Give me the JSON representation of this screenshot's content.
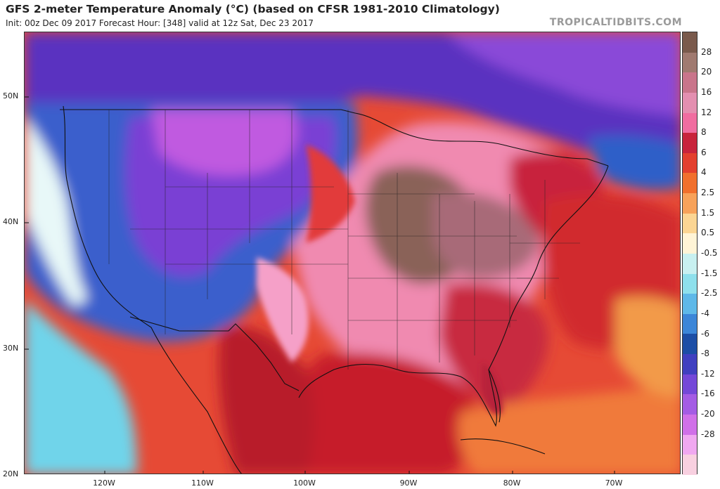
{
  "header": {
    "title": "GFS 2-meter Temperature Anomaly (°C) (based on CFSR 1981-2010 Climatology)",
    "subtitle": "Init: 00z Dec 09 2017   Forecast Hour: [348]   valid at 12z Sat, Dec 23 2017",
    "watermark": "TROPICALTIDBITS.COM"
  },
  "map": {
    "lat_labels": [
      "50N",
      "40N",
      "30N",
      "20N"
    ],
    "lon_labels": [
      "120W",
      "110W",
      "100W",
      "90W",
      "80W",
      "70W"
    ],
    "lat_values": [
      50,
      40,
      30,
      20
    ],
    "lon_values": [
      -120,
      -110,
      -100,
      -90,
      -80,
      -70
    ]
  },
  "colorbar": {
    "labels": [
      "28",
      "20",
      "16",
      "12",
      "8",
      "6",
      "4",
      "2.5",
      "1.5",
      "0.5",
      "-0.5",
      "-1.5",
      "-2.5",
      "-4",
      "-6",
      "-8",
      "-12",
      "-16",
      "-20",
      "-28"
    ],
    "colors": [
      "#7a5a4c",
      "#a07a70",
      "#c9758b",
      "#e38fb0",
      "#f06da0",
      "#c8243c",
      "#e3402e",
      "#f1702d",
      "#f7a25a",
      "#fbd593",
      "#fff4d6",
      "#c8f0f0",
      "#8ee0ec",
      "#5eb8e8",
      "#3c86d8",
      "#1c4ea6",
      "#4040c0",
      "#7448d8",
      "#a45ce4",
      "#d070e8",
      "#f0a8f0",
      "#f8d0e0"
    ]
  },
  "colors": {
    "cold_deep": "#4c2fb8",
    "cold_mid": "#3c6fd0",
    "warm_deep": "#b01c30",
    "warm_max": "#8a6258"
  }
}
